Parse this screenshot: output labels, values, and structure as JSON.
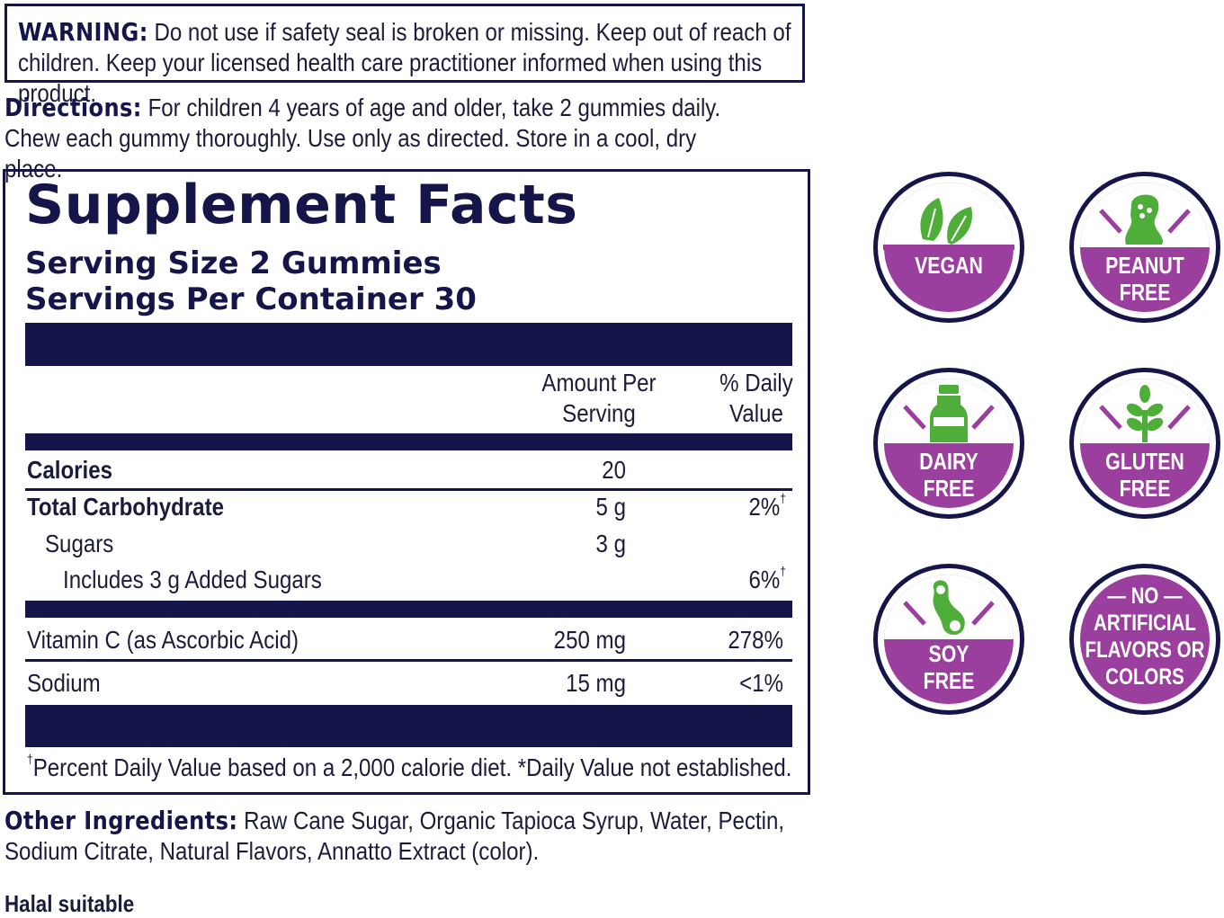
{
  "warning": {
    "label": "WARNING:",
    "text": " Do not use if safety seal is broken or missing. Keep out of reach of children. Keep your licensed health care practitioner informed when using this product."
  },
  "directions": {
    "label": "Directions:",
    "text": " For children 4 years of age and older, take 2 gummies daily. Chew each gummy thoroughly. Use only as directed. Store in a cool, dry place."
  },
  "facts": {
    "title": "Supplement Facts",
    "serving_size": "Serving Size 2 Gummies",
    "servings_per_container": "Servings Per Container 30",
    "col_amount_1": "Amount Per",
    "col_amount_2": "Serving",
    "col_dv_1": "% Daily",
    "col_dv_2": "Value",
    "rows": [
      {
        "name": "Calories",
        "amount": "20",
        "dv": ""
      },
      {
        "name": "Total Carbohydrate",
        "amount": "5 g",
        "dv": "2%"
      },
      {
        "name": "Sugars",
        "amount": "3 g",
        "dv": ""
      },
      {
        "name": "Includes 3 g Added Sugars",
        "amount": "",
        "dv": "6%"
      },
      {
        "name": "Vitamin C (as Ascorbic Acid)",
        "amount": "250 mg",
        "dv": "278%"
      },
      {
        "name": "Sodium",
        "amount": "15 mg",
        "dv": "<1%"
      }
    ],
    "dagger": "†",
    "footnote": "Percent Daily Value based on a 2,000 calorie diet.  *Daily Value not established."
  },
  "other_ingredients": {
    "label": "Other Ingredients:",
    "text": " Raw Cane Sugar, Organic Tapioca Syrup, Water, Pectin, Sodium Citrate, Natural Flavors, Annatto Extract (color)."
  },
  "halal": "Halal suitable",
  "badges": {
    "vegan": {
      "line1": "VEGAN",
      "icon": "leaf-icon"
    },
    "peanut": {
      "line1": "PEANUT",
      "line2": "FREE",
      "icon": "peanut-icon"
    },
    "dairy": {
      "line1": "DAIRY",
      "line2": "FREE",
      "icon": "milk-bottle-icon"
    },
    "gluten": {
      "line1": "GLUTEN",
      "line2": "FREE",
      "icon": "wheat-icon"
    },
    "soy": {
      "line1": "SOY",
      "line2": "FREE",
      "icon": "soybean-icon"
    },
    "artificial": {
      "line1": "— NO —",
      "line2": "ARTIFICIAL",
      "line3": "FLAVORS OR",
      "line4": "COLORS"
    }
  },
  "colors": {
    "navy": "#15154a",
    "purple": "#9b3f9e",
    "green": "#4fae3a"
  }
}
